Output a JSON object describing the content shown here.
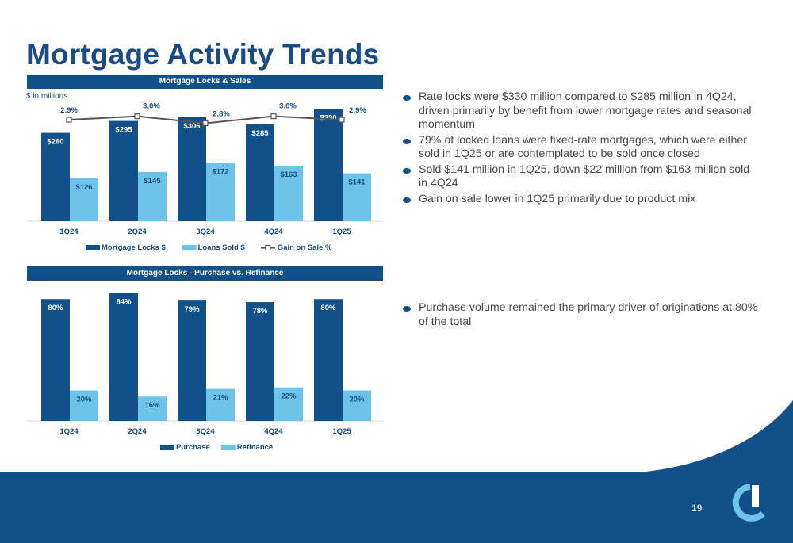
{
  "slide": {
    "title": "Mortgage Activity Trends",
    "page_number": "19"
  },
  "panel1": {
    "header": "Mortgage Locks & Sales",
    "unit_note": "$ in millions"
  },
  "panel2": {
    "header": "Mortgage Locks - Purchase vs. Refinance"
  },
  "bullets_top": [
    "Rate locks were $330 million compared to $285 million in 4Q24, driven primarily by benefit from lower mortgage rates and seasonal momentum",
    "79% of locked loans were fixed-rate mortgages, which were either sold in 1Q25 or are contemplated to be sold once closed",
    "Sold $141 million in 1Q25, down $22 million from $163 million sold in 4Q24",
    "Gain on sale lower in 1Q25 primarily due to product mix"
  ],
  "bullets_bottom": [
    "Purchase volume remained the primary driver of originations at 80% of the total"
  ],
  "colors": {
    "dark_blue": "#12508a",
    "light_blue": "#6cc4e8",
    "line_gray": "#555555",
    "title_blue": "#1a4b86"
  },
  "chart_data": [
    {
      "type": "bar",
      "title": "Mortgage Locks & Sales",
      "categories": [
        "1Q24",
        "2Q24",
        "3Q24",
        "4Q24",
        "1Q25"
      ],
      "series": [
        {
          "name": "Mortgage Locks $",
          "kind": "bar",
          "color": "#12508a",
          "values": [
            260,
            295,
            306,
            285,
            330
          ],
          "labels": [
            "$260",
            "$295",
            "$306",
            "$285",
            "$330"
          ]
        },
        {
          "name": "Loans Sold $",
          "kind": "bar",
          "color": "#6cc4e8",
          "values": [
            126,
            145,
            172,
            163,
            141
          ],
          "labels": [
            "$126",
            "$145",
            "$172",
            "$163",
            "$141"
          ]
        },
        {
          "name": "Gain on Sale %",
          "kind": "line",
          "color": "#555555",
          "values": [
            2.9,
            3.0,
            2.8,
            3.0,
            2.9
          ],
          "labels": [
            "2.9%",
            "3.0%",
            "2.8%",
            "3.0%",
            "2.9%"
          ]
        }
      ],
      "ylim": [
        0,
        350
      ],
      "y2lim": [
        0,
        3.4
      ],
      "legend": "bottom",
      "grid": false
    },
    {
      "type": "bar",
      "title": "Mortgage Locks - Purchase vs. Refinance",
      "categories": [
        "1Q24",
        "2Q24",
        "3Q24",
        "4Q24",
        "1Q25"
      ],
      "series": [
        {
          "name": "Purchase",
          "kind": "bar",
          "color": "#12508a",
          "values": [
            80,
            84,
            79,
            78,
            80
          ],
          "labels": [
            "80%",
            "84%",
            "79%",
            "78%",
            "80%"
          ]
        },
        {
          "name": "Refinance",
          "kind": "bar",
          "color": "#6cc4e8",
          "values": [
            20,
            16,
            21,
            22,
            20
          ],
          "labels": [
            "20%",
            "16%",
            "21%",
            "22%",
            "20%"
          ]
        }
      ],
      "ylim": [
        0,
        90
      ],
      "legend": "bottom",
      "grid": false
    }
  ]
}
